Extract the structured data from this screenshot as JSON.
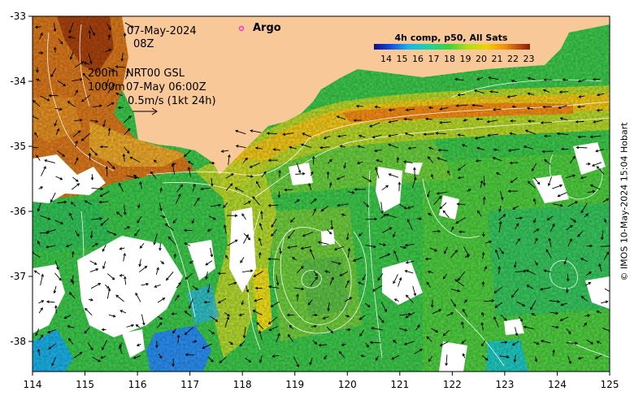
{
  "map": {
    "date_label": "07-May-2024",
    "hour_label": "08Z",
    "contour_shallow": "200m",
    "contour_deep": "1000m",
    "current_source": "NRT00 GSL",
    "current_time": "07-May 06:00Z",
    "arrow_scale_label": "0.5m/s (1kt 24h)",
    "argo_label": "Argo",
    "colorbar_title": "4h comp, p50, All Sats",
    "credit": "© IMOS 10-May-2024 15:04 Hobart",
    "x_ticks": [
      "114",
      "115",
      "116",
      "117",
      "118",
      "119",
      "120",
      "121",
      "122",
      "123",
      "124",
      "125"
    ],
    "y_ticks": [
      "-33",
      "-34",
      "-35",
      "-36",
      "-37",
      "-38"
    ],
    "colorbar_ticks": [
      "14",
      "15",
      "16",
      "17",
      "18",
      "19",
      "20",
      "21",
      "22",
      "23"
    ],
    "colors": {
      "land": "#f8c898",
      "argo_marker": "#ff33cc",
      "warm": "#c05e12",
      "cool": "#2a8ef0"
    }
  }
}
